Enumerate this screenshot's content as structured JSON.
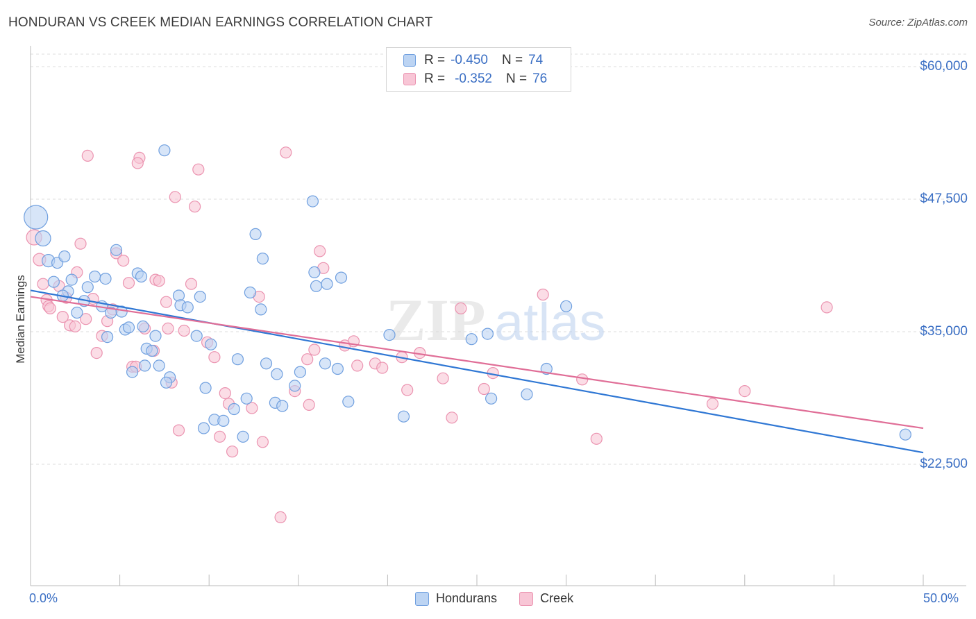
{
  "title": "HONDURAN VS CREEK MEDIAN EARNINGS CORRELATION CHART",
  "source": "Source: ZipAtlas.com",
  "watermark": {
    "zip": "ZIP",
    "atlas": "atlas"
  },
  "colors": {
    "blue": "#2f77d4",
    "blue_fill": "#bcd4f3",
    "blue_edge": "#6f9fdf",
    "pink": "#e06e97",
    "pink_fill": "#f8c6d6",
    "pink_edge": "#eb93b0",
    "axis_text": "#3b6fc4",
    "grid": "#dddddd"
  },
  "legend_top": {
    "rows": [
      {
        "r_label": "R =",
        "r_value": "-0.450",
        "n_label": "N =",
        "n_value": "74"
      },
      {
        "r_label": "R =",
        "r_value": "-0.352",
        "n_label": "N =",
        "n_value": "76"
      }
    ]
  },
  "legend_bottom": {
    "items": [
      "Hondurans",
      "Creek"
    ]
  },
  "chart_data": {
    "type": "scatter",
    "title": "HONDURAN VS CREEK MEDIAN EARNINGS CORRELATION CHART",
    "xlabel": "",
    "ylabel": "Median Earnings",
    "xlim": [
      0,
      50
    ],
    "ylim": [
      12500,
      62500
    ],
    "x_tick_labels": [
      "0.0%",
      "50.0%"
    ],
    "y_ticks": [
      22500,
      35000,
      47500,
      60000
    ],
    "y_tick_labels": [
      "$22,500",
      "$35,000",
      "$47,500",
      "$60,000"
    ],
    "grid": true,
    "series": [
      {
        "name": "Hondurans",
        "R": -0.45,
        "N": 74,
        "trend": {
          "x0": 0,
          "y0": 38900,
          "x1": 50,
          "y1": 23600
        },
        "points": [
          [
            0.3,
            45800,
            34
          ],
          [
            0.7,
            43800,
            22
          ],
          [
            1.0,
            41700,
            18
          ],
          [
            1.5,
            41500,
            16
          ],
          [
            1.9,
            42100,
            16
          ],
          [
            1.3,
            39700,
            16
          ],
          [
            2.3,
            39900,
            16
          ],
          [
            2.1,
            38800,
            16
          ],
          [
            3.2,
            39200,
            16
          ],
          [
            3.6,
            40200,
            16
          ],
          [
            4.2,
            40000,
            16
          ],
          [
            4.8,
            42700,
            16
          ],
          [
            6.0,
            40500,
            16
          ],
          [
            6.2,
            40200,
            16
          ],
          [
            2.6,
            36800,
            16
          ],
          [
            3.0,
            37900,
            16
          ],
          [
            4.0,
            37400,
            16
          ],
          [
            4.5,
            36800,
            16
          ],
          [
            5.1,
            36900,
            16
          ],
          [
            5.3,
            35200,
            16
          ],
          [
            4.3,
            34500,
            16
          ],
          [
            6.3,
            35500,
            16
          ],
          [
            7.0,
            34600,
            16
          ],
          [
            6.5,
            33400,
            16
          ],
          [
            6.8,
            33200,
            16
          ],
          [
            6.4,
            31800,
            16
          ],
          [
            7.2,
            31800,
            16
          ],
          [
            5.7,
            31200,
            16
          ],
          [
            7.8,
            30700,
            16
          ],
          [
            7.6,
            30200,
            16
          ],
          [
            8.3,
            38400,
            16
          ],
          [
            8.4,
            37500,
            16
          ],
          [
            8.8,
            37300,
            16
          ],
          [
            9.5,
            38300,
            16
          ],
          [
            9.3,
            34600,
            16
          ],
          [
            10.1,
            33800,
            16
          ],
          [
            7.5,
            52100,
            16
          ],
          [
            12.6,
            44200,
            16
          ],
          [
            13.0,
            41900,
            16
          ],
          [
            12.3,
            38700,
            16
          ],
          [
            12.9,
            37100,
            16
          ],
          [
            11.6,
            32400,
            16
          ],
          [
            13.2,
            32000,
            16
          ],
          [
            13.8,
            31000,
            16
          ],
          [
            15.1,
            31200,
            16
          ],
          [
            9.8,
            29700,
            16
          ],
          [
            12.1,
            28700,
            16
          ],
          [
            11.4,
            27700,
            16
          ],
          [
            13.7,
            28300,
            16
          ],
          [
            14.1,
            28000,
            16
          ],
          [
            14.8,
            29900,
            16
          ],
          [
            10.3,
            26700,
            16
          ],
          [
            9.7,
            25900,
            16
          ],
          [
            10.8,
            26600,
            16
          ],
          [
            11.9,
            25100,
            16
          ],
          [
            15.8,
            47300,
            16
          ],
          [
            15.9,
            40600,
            16
          ],
          [
            16.0,
            39300,
            16
          ],
          [
            16.6,
            39500,
            16
          ],
          [
            17.4,
            40100,
            16
          ],
          [
            16.5,
            32000,
            16
          ],
          [
            17.2,
            31500,
            16
          ],
          [
            17.8,
            28400,
            16
          ],
          [
            20.1,
            34700,
            16
          ],
          [
            20.9,
            27000,
            16
          ],
          [
            25.6,
            34800,
            16
          ],
          [
            24.7,
            34300,
            16
          ],
          [
            25.8,
            28700,
            16
          ],
          [
            27.8,
            29100,
            16
          ],
          [
            28.9,
            31500,
            16
          ],
          [
            30.0,
            37400,
            16
          ],
          [
            49.0,
            25300,
            16
          ],
          [
            5.5,
            35400,
            16
          ],
          [
            1.8,
            38400,
            16
          ]
        ]
      },
      {
        "name": "Creek",
        "R": -0.352,
        "N": 76,
        "trend": {
          "x0": 0,
          "y0": 38300,
          "x1": 50,
          "y1": 25900
        },
        "points": [
          [
            0.2,
            43900,
            22
          ],
          [
            0.5,
            41800,
            18
          ],
          [
            0.9,
            38000,
            16
          ],
          [
            1.0,
            37400,
            16
          ],
          [
            1.1,
            37200,
            16
          ],
          [
            1.6,
            39300,
            16
          ],
          [
            1.8,
            36400,
            16
          ],
          [
            2.0,
            38200,
            16
          ],
          [
            2.2,
            35600,
            16
          ],
          [
            2.5,
            35500,
            16
          ],
          [
            2.6,
            40600,
            16
          ],
          [
            2.8,
            43300,
            16
          ],
          [
            3.1,
            36200,
            16
          ],
          [
            3.5,
            38100,
            16
          ],
          [
            3.7,
            33000,
            16
          ],
          [
            4.0,
            34600,
            16
          ],
          [
            4.3,
            36000,
            16
          ],
          [
            4.6,
            37100,
            16
          ],
          [
            4.8,
            42400,
            16
          ],
          [
            5.2,
            41700,
            16
          ],
          [
            5.5,
            39600,
            16
          ],
          [
            5.7,
            31700,
            16
          ],
          [
            5.9,
            31700,
            16
          ],
          [
            6.1,
            51400,
            16
          ],
          [
            6.0,
            50900,
            16
          ],
          [
            6.4,
            35300,
            16
          ],
          [
            6.9,
            33200,
            16
          ],
          [
            7.0,
            39900,
            16
          ],
          [
            7.2,
            39800,
            16
          ],
          [
            7.6,
            37800,
            16
          ],
          [
            7.7,
            35300,
            16
          ],
          [
            7.9,
            30200,
            16
          ],
          [
            8.1,
            47700,
            16
          ],
          [
            8.3,
            25700,
            16
          ],
          [
            8.6,
            35100,
            16
          ],
          [
            9.0,
            39500,
            16
          ],
          [
            9.2,
            46800,
            16
          ],
          [
            9.4,
            50300,
            16
          ],
          [
            9.9,
            34000,
            16
          ],
          [
            10.3,
            32600,
            16
          ],
          [
            10.6,
            25100,
            16
          ],
          [
            10.9,
            29200,
            16
          ],
          [
            11.1,
            28200,
            16
          ],
          [
            11.3,
            23700,
            16
          ],
          [
            12.4,
            27800,
            16
          ],
          [
            12.8,
            38300,
            16
          ],
          [
            13.0,
            24600,
            16
          ],
          [
            14.3,
            51900,
            16
          ],
          [
            14.8,
            29400,
            16
          ],
          [
            15.5,
            32400,
            16
          ],
          [
            15.6,
            28100,
            16
          ],
          [
            15.9,
            33300,
            16
          ],
          [
            16.2,
            42600,
            16
          ],
          [
            16.4,
            41000,
            16
          ],
          [
            17.6,
            33700,
            16
          ],
          [
            18.1,
            34100,
            16
          ],
          [
            18.3,
            31800,
            16
          ],
          [
            19.3,
            32000,
            16
          ],
          [
            19.7,
            31600,
            16
          ],
          [
            20.8,
            32600,
            16
          ],
          [
            21.1,
            29500,
            16
          ],
          [
            21.8,
            33000,
            16
          ],
          [
            23.1,
            30600,
            16
          ],
          [
            23.6,
            26900,
            16
          ],
          [
            24.1,
            37200,
            16
          ],
          [
            25.4,
            29600,
            16
          ],
          [
            25.9,
            31100,
            16
          ],
          [
            28.7,
            38500,
            16
          ],
          [
            30.9,
            30500,
            16
          ],
          [
            31.7,
            24900,
            16
          ],
          [
            3.2,
            51600,
            16
          ],
          [
            14.0,
            17500,
            16
          ],
          [
            38.2,
            28200,
            16
          ],
          [
            40.0,
            29400,
            16
          ],
          [
            44.6,
            37300,
            16
          ],
          [
            0.7,
            39500,
            16
          ]
        ]
      }
    ]
  }
}
